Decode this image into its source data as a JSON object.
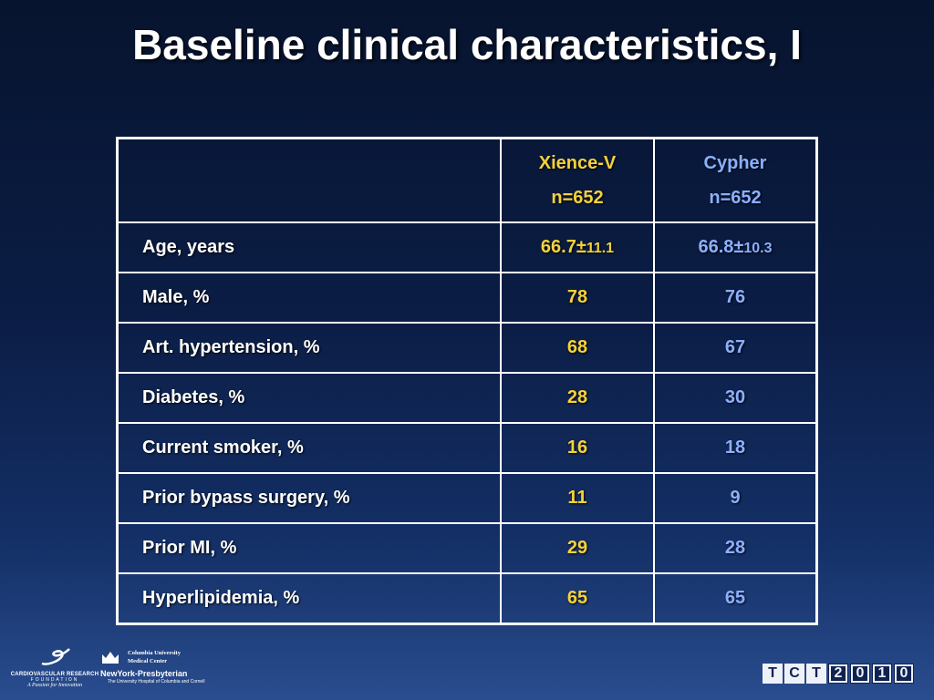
{
  "title": "Baseline clinical characteristics, I",
  "table": {
    "header": {
      "xience": {
        "name": "Xience-V",
        "n": "n=652"
      },
      "cypher": {
        "name": "Cypher",
        "n": "n=652"
      }
    },
    "rows": [
      {
        "label": "Age, years",
        "xience": "66.7±",
        "xience_sd": "11.1",
        "cypher": "66.8±",
        "cypher_sd": "10.3"
      },
      {
        "label": "Male, %",
        "xience": "78",
        "cypher": "76"
      },
      {
        "label": "Art. hypertension, %",
        "xience": "68",
        "cypher": "67"
      },
      {
        "label": "Diabetes, %",
        "xience": "28",
        "cypher": "30"
      },
      {
        "label": "Current smoker, %",
        "xience": "16",
        "cypher": "18"
      },
      {
        "label": "Prior bypass surgery, %",
        "xience": "11",
        "cypher": "9"
      },
      {
        "label": "Prior MI, %",
        "xience": "29",
        "cypher": "28"
      },
      {
        "label": "Hyperlipidemia, %",
        "xience": "65",
        "cypher": "65"
      }
    ]
  },
  "footer": {
    "crf": {
      "name": "CARDIOVASCULAR RESEARCH",
      "sub": "FOUNDATION",
      "tagline": "A Passion for Innovation"
    },
    "columbia": {
      "line1": "Columbia University",
      "line2": "Medical Center",
      "nyp": "NewYork-Presbyterian",
      "nyp_sub": "The University Hospital of Columbia and Cornell"
    },
    "tct": [
      "T",
      "C",
      "T",
      "2",
      "0",
      "1",
      "0"
    ]
  }
}
